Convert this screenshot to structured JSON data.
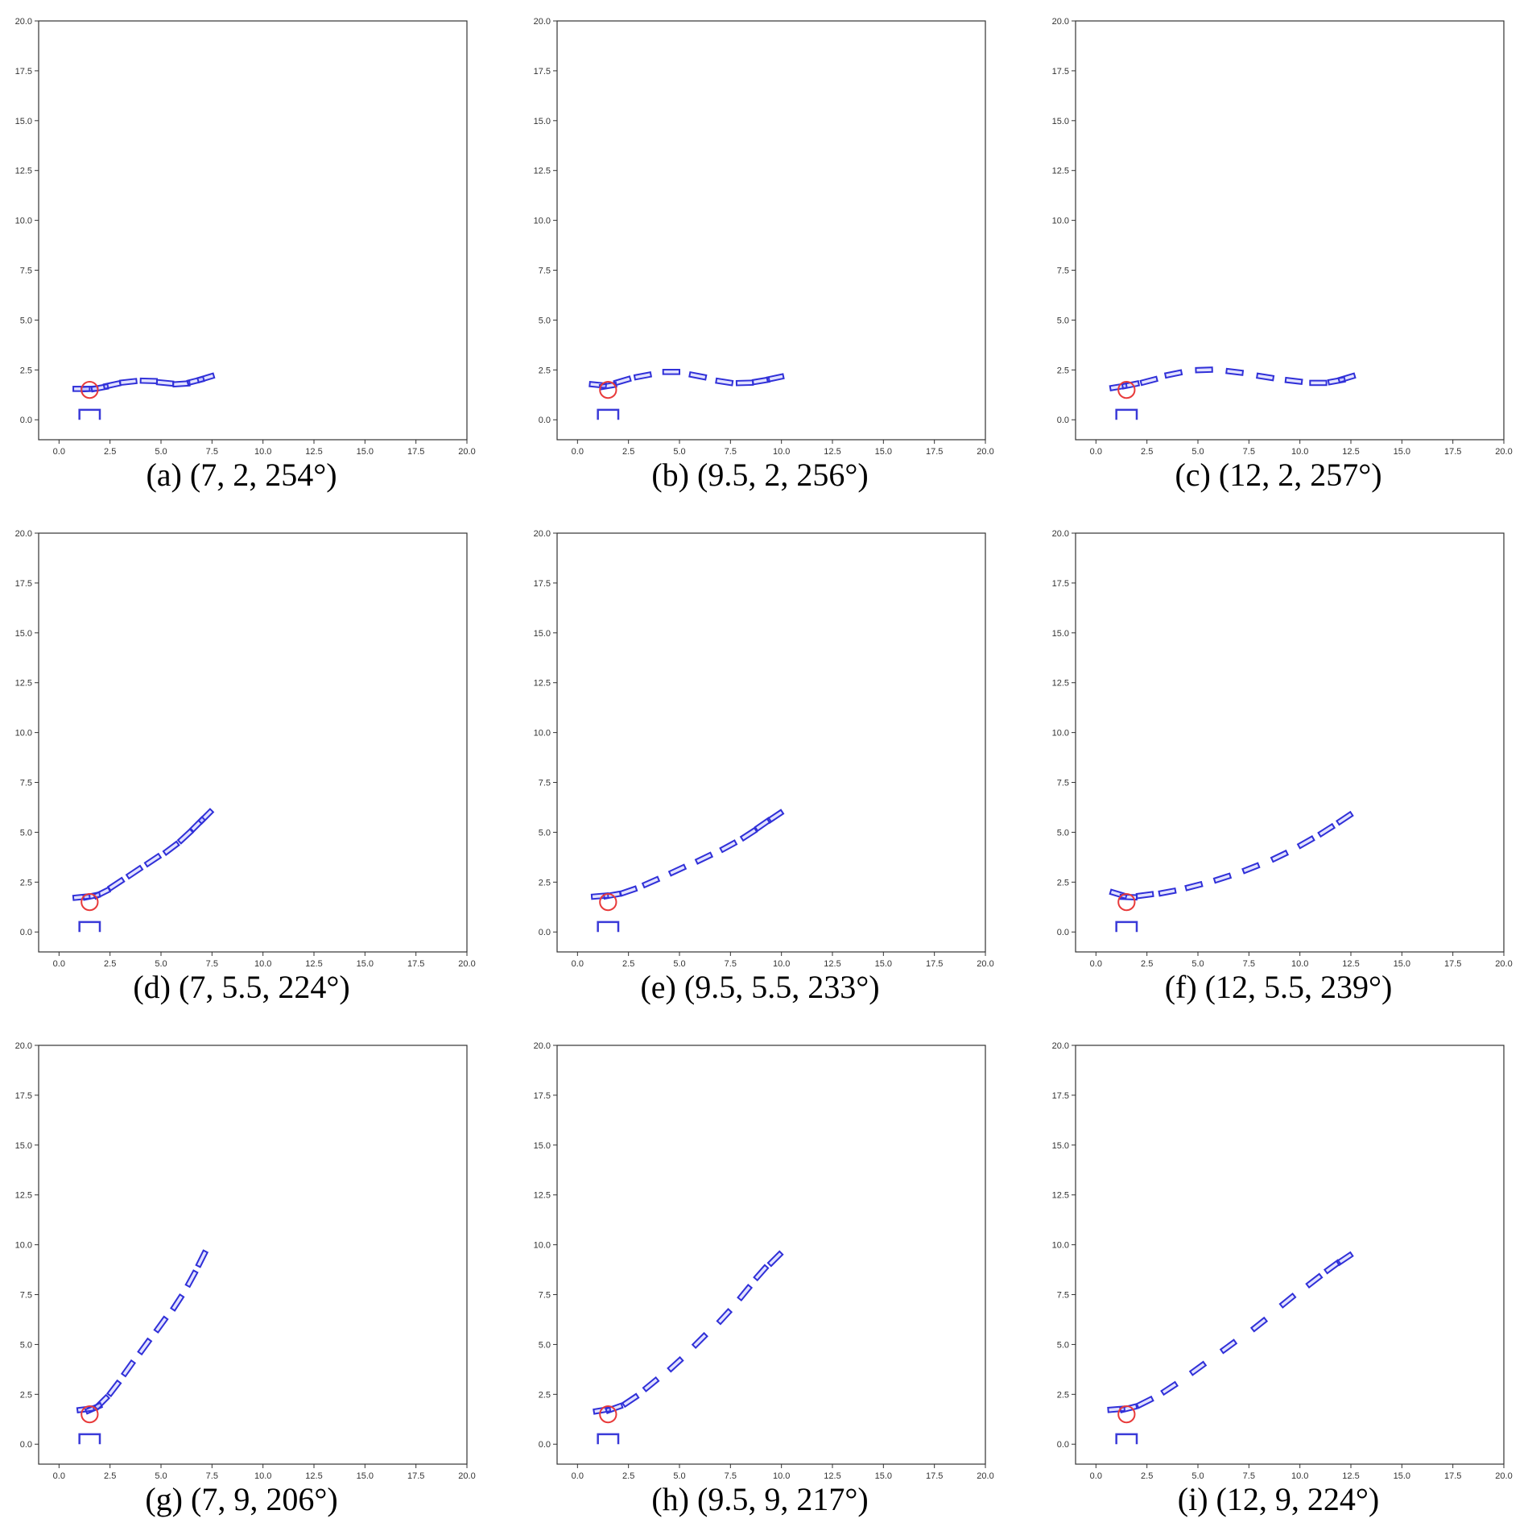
{
  "chart_data": [
    {
      "type": "scatter",
      "panel": "(a)",
      "params": "(7, 2, 254°)",
      "caption": "(a) (7, 2, 254°)",
      "xlim": [
        0,
        20
      ],
      "ylim": [
        0,
        20
      ],
      "xticks": [
        "0.0",
        "2.5",
        "5.0",
        "7.5",
        "10.0",
        "12.5",
        "15.0",
        "17.5",
        "20.0"
      ],
      "yticks": [
        "0.0",
        "2.5",
        "5.0",
        "7.5",
        "10.0",
        "12.5",
        "15.0",
        "17.5",
        "20.0"
      ],
      "circle": {
        "x": 1.5,
        "y": 1.5,
        "r": 0.4
      },
      "slot": {
        "x0": 1.0,
        "x1": 2.0,
        "y0": 0.0,
        "y1": 0.5
      },
      "trajectory": [
        [
          1.1,
          1.55
        ],
        [
          1.5,
          1.55
        ],
        [
          2.0,
          1.6
        ],
        [
          2.6,
          1.75
        ],
        [
          3.4,
          1.9
        ],
        [
          4.4,
          1.95
        ],
        [
          5.2,
          1.85
        ],
        [
          6.0,
          1.8
        ],
        [
          6.7,
          1.95
        ],
        [
          7.2,
          2.1
        ]
      ]
    },
    {
      "type": "scatter",
      "panel": "(b)",
      "params": "(9.5, 2, 256°)",
      "caption": "(b) (9.5, 2, 256°)",
      "xlim": [
        0,
        20
      ],
      "ylim": [
        0,
        20
      ],
      "xticks": [
        "0.0",
        "2.5",
        "5.0",
        "7.5",
        "10.0",
        "12.5",
        "15.0",
        "17.5",
        "20.0"
      ],
      "yticks": [
        "0.0",
        "2.5",
        "5.0",
        "7.5",
        "10.0",
        "12.5",
        "15.0",
        "17.5",
        "20.0"
      ],
      "circle": {
        "x": 1.5,
        "y": 1.5,
        "r": 0.4
      },
      "slot": {
        "x0": 1.0,
        "x1": 2.0,
        "y0": 0.0,
        "y1": 0.5
      },
      "trajectory": [
        [
          1.0,
          1.75
        ],
        [
          1.5,
          1.7
        ],
        [
          2.2,
          1.95
        ],
        [
          3.2,
          2.2
        ],
        [
          4.6,
          2.4
        ],
        [
          5.9,
          2.2
        ],
        [
          7.2,
          1.9
        ],
        [
          8.2,
          1.85
        ],
        [
          9.0,
          1.95
        ],
        [
          9.7,
          2.1
        ]
      ]
    },
    {
      "type": "scatter",
      "panel": "(c)",
      "params": "(12, 2, 257°)",
      "caption": "(c) (12, 2, 257°)",
      "xlim": [
        0,
        20
      ],
      "ylim": [
        0,
        20
      ],
      "xticks": [
        "0.0",
        "2.5",
        "5.0",
        "7.5",
        "10.0",
        "12.5",
        "15.0",
        "17.5",
        "20.0"
      ],
      "yticks": [
        "0.0",
        "2.5",
        "5.0",
        "7.5",
        "10.0",
        "12.5",
        "15.0",
        "17.5",
        "20.0"
      ],
      "circle": {
        "x": 1.5,
        "y": 1.5,
        "r": 0.4
      },
      "slot": {
        "x0": 1.0,
        "x1": 2.0,
        "y0": 0.0,
        "y1": 0.5
      },
      "trajectory": [
        [
          1.1,
          1.65
        ],
        [
          1.7,
          1.75
        ],
        [
          2.6,
          1.95
        ],
        [
          3.8,
          2.3
        ],
        [
          5.3,
          2.5
        ],
        [
          6.8,
          2.4
        ],
        [
          8.3,
          2.15
        ],
        [
          9.7,
          1.95
        ],
        [
          10.9,
          1.85
        ],
        [
          11.8,
          1.95
        ],
        [
          12.3,
          2.1
        ]
      ]
    },
    {
      "type": "scatter",
      "panel": "(d)",
      "params": "(7, 5.5, 224°)",
      "caption": "(d) (7, 5.5, 224°)",
      "xlim": [
        0,
        20
      ],
      "ylim": [
        0,
        20
      ],
      "xticks": [
        "0.0",
        "2.5",
        "5.0",
        "7.5",
        "10.0",
        "12.5",
        "15.0",
        "17.5",
        "20.0"
      ],
      "yticks": [
        "0.0",
        "2.5",
        "5.0",
        "7.5",
        "10.0",
        "12.5",
        "15.0",
        "17.5",
        "20.0"
      ],
      "circle": {
        "x": 1.5,
        "y": 1.5,
        "r": 0.4
      },
      "slot": {
        "x0": 1.0,
        "x1": 2.0,
        "y0": 0.0,
        "y1": 0.5
      },
      "trajectory": [
        [
          1.1,
          1.75
        ],
        [
          1.6,
          1.8
        ],
        [
          2.1,
          1.95
        ],
        [
          2.8,
          2.4
        ],
        [
          3.7,
          3.0
        ],
        [
          4.6,
          3.6
        ],
        [
          5.5,
          4.2
        ],
        [
          6.2,
          4.8
        ],
        [
          6.8,
          5.4
        ],
        [
          7.2,
          5.8
        ]
      ]
    },
    {
      "type": "scatter",
      "panel": "(e)",
      "params": "(9.5, 5.5, 233°)",
      "caption": "(e) (9.5, 5.5, 233°)",
      "xlim": [
        0,
        20
      ],
      "ylim": [
        0,
        20
      ],
      "xticks": [
        "0.0",
        "2.5",
        "5.0",
        "7.5",
        "10.0",
        "12.5",
        "15.0",
        "17.5",
        "20.0"
      ],
      "yticks": [
        "0.0",
        "2.5",
        "5.0",
        "7.5",
        "10.0",
        "12.5",
        "15.0",
        "17.5",
        "20.0"
      ],
      "circle": {
        "x": 1.5,
        "y": 1.5,
        "r": 0.4
      },
      "slot": {
        "x0": 1.0,
        "x1": 2.0,
        "y0": 0.0,
        "y1": 0.5
      },
      "trajectory": [
        [
          1.1,
          1.8
        ],
        [
          1.7,
          1.85
        ],
        [
          2.5,
          2.05
        ],
        [
          3.6,
          2.5
        ],
        [
          4.9,
          3.1
        ],
        [
          6.2,
          3.7
        ],
        [
          7.4,
          4.3
        ],
        [
          8.4,
          4.9
        ],
        [
          9.1,
          5.4
        ],
        [
          9.7,
          5.8
        ]
      ]
    },
    {
      "type": "scatter",
      "panel": "(f)",
      "params": "(12, 5.5, 239°)",
      "caption": "(f) (12, 5.5, 239°)",
      "xlim": [
        0,
        20
      ],
      "ylim": [
        0,
        20
      ],
      "xticks": [
        "0.0",
        "2.5",
        "5.0",
        "7.5",
        "10.0",
        "12.5",
        "15.0",
        "17.5",
        "20.0"
      ],
      "yticks": [
        "0.0",
        "2.5",
        "5.0",
        "7.5",
        "10.0",
        "12.5",
        "15.0",
        "17.5",
        "20.0"
      ],
      "circle": {
        "x": 1.5,
        "y": 1.5,
        "r": 0.4
      },
      "slot": {
        "x0": 1.0,
        "x1": 2.0,
        "y0": 0.0,
        "y1": 0.5
      },
      "trajectory": [
        [
          1.1,
          1.9
        ],
        [
          1.6,
          1.75
        ],
        [
          2.4,
          1.85
        ],
        [
          3.5,
          2.0
        ],
        [
          4.8,
          2.3
        ],
        [
          6.2,
          2.7
        ],
        [
          7.6,
          3.2
        ],
        [
          9.0,
          3.8
        ],
        [
          10.3,
          4.5
        ],
        [
          11.3,
          5.1
        ],
        [
          12.2,
          5.7
        ]
      ]
    },
    {
      "type": "scatter",
      "panel": "(g)",
      "params": "(7, 9, 206°)",
      "caption": "(g) (7, 9, 206°)",
      "xlim": [
        0,
        20
      ],
      "ylim": [
        0,
        20
      ],
      "xticks": [
        "0.0",
        "2.5",
        "5.0",
        "7.5",
        "10.0",
        "12.5",
        "15.0",
        "17.5",
        "20.0"
      ],
      "yticks": [
        "0.0",
        "2.5",
        "5.0",
        "7.5",
        "10.0",
        "12.5",
        "15.0",
        "17.5",
        "20.0"
      ],
      "circle": {
        "x": 1.5,
        "y": 1.5,
        "r": 0.4
      },
      "slot": {
        "x0": 1.0,
        "x1": 2.0,
        "y0": 0.0,
        "y1": 0.5
      },
      "trajectory": [
        [
          1.3,
          1.75
        ],
        [
          1.7,
          1.8
        ],
        [
          2.1,
          2.1
        ],
        [
          2.7,
          2.8
        ],
        [
          3.4,
          3.8
        ],
        [
          4.2,
          4.9
        ],
        [
          5.0,
          6.0
        ],
        [
          5.8,
          7.1
        ],
        [
          6.5,
          8.3
        ],
        [
          7.0,
          9.3
        ]
      ]
    },
    {
      "type": "scatter",
      "panel": "(h)",
      "params": "(9.5, 9, 217°)",
      "caption": "(h) (9.5, 9, 217°)",
      "xlim": [
        0,
        20
      ],
      "ylim": [
        0,
        20
      ],
      "xticks": [
        "0.0",
        "2.5",
        "5.0",
        "7.5",
        "10.0",
        "12.5",
        "15.0",
        "17.5",
        "20.0"
      ],
      "yticks": [
        "0.0",
        "2.5",
        "5.0",
        "7.5",
        "10.0",
        "12.5",
        "15.0",
        "17.5",
        "20.0"
      ],
      "circle": {
        "x": 1.5,
        "y": 1.5,
        "r": 0.4
      },
      "slot": {
        "x0": 1.0,
        "x1": 2.0,
        "y0": 0.0,
        "y1": 0.5
      },
      "trajectory": [
        [
          1.2,
          1.7
        ],
        [
          1.8,
          1.8
        ],
        [
          2.6,
          2.2
        ],
        [
          3.6,
          3.0
        ],
        [
          4.8,
          4.0
        ],
        [
          6.0,
          5.2
        ],
        [
          7.2,
          6.4
        ],
        [
          8.2,
          7.6
        ],
        [
          9.0,
          8.6
        ],
        [
          9.7,
          9.3
        ]
      ]
    },
    {
      "type": "scatter",
      "panel": "(i)",
      "params": "(12, 9, 224°)",
      "caption": "(i) (12, 9, 224°)",
      "xlim": [
        0,
        20
      ],
      "ylim": [
        0,
        20
      ],
      "xticks": [
        "0.0",
        "2.5",
        "5.0",
        "7.5",
        "10.0",
        "12.5",
        "15.0",
        "17.5",
        "20.0"
      ],
      "yticks": [
        "0.0",
        "2.5",
        "5.0",
        "7.5",
        "10.0",
        "12.5",
        "15.0",
        "17.5",
        "20.0"
      ],
      "circle": {
        "x": 1.5,
        "y": 1.5,
        "r": 0.4
      },
      "slot": {
        "x0": 1.0,
        "x1": 2.0,
        "y0": 0.0,
        "y1": 0.5
      },
      "trajectory": [
        [
          1.0,
          1.75
        ],
        [
          1.6,
          1.8
        ],
        [
          2.4,
          2.1
        ],
        [
          3.6,
          2.8
        ],
        [
          5.0,
          3.8
        ],
        [
          6.5,
          4.9
        ],
        [
          8.0,
          6.0
        ],
        [
          9.4,
          7.2
        ],
        [
          10.7,
          8.2
        ],
        [
          11.6,
          8.9
        ],
        [
          12.2,
          9.3
        ]
      ]
    }
  ],
  "colors": {
    "vehicle_stroke": "#3030d8",
    "vehicle_fill": "rgba(90,90,255,0.18)",
    "circle": "#e83a3a",
    "slot": "#3a3ad8",
    "axes": "#333333"
  }
}
